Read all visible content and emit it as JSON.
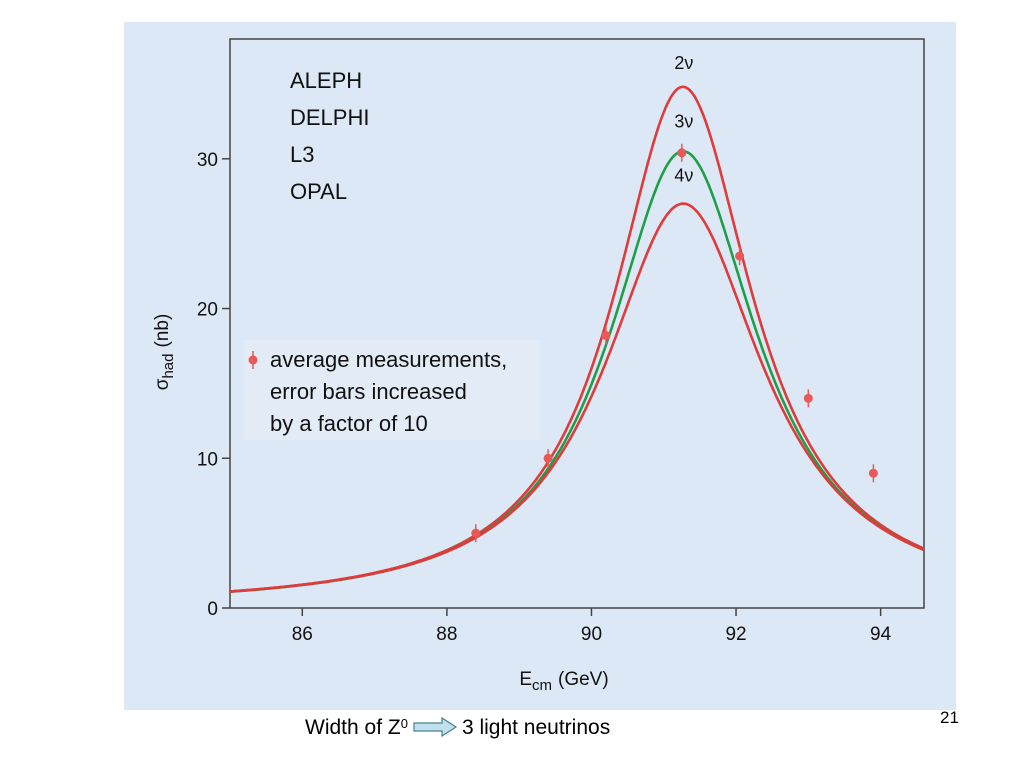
{
  "chart_data": {
    "type": "line",
    "xlabel_main": "E",
    "xlabel_sub": "cm",
    "xlabel_unit": "(GeV)",
    "ylabel_main": "σ",
    "ylabel_sub": "had",
    "ylabel_unit": "(nb)",
    "xlim": [
      85,
      94.6
    ],
    "ylim": [
      0,
      38
    ],
    "x_ticks": [
      86,
      88,
      90,
      92,
      94
    ],
    "y_ticks": [
      0,
      10,
      20,
      30
    ],
    "experiments": [
      "ALEPH",
      "DELPHI",
      "L3",
      "OPAL"
    ],
    "legend_lines": [
      "average measurements,",
      "error bars increased",
      "by a factor of 10"
    ],
    "series": [
      {
        "name": "2ν",
        "color": "#e03a3a",
        "peak": 34.8,
        "mz": 91.25,
        "width": 2.35
      },
      {
        "name": "3ν",
        "color": "#1f9e48",
        "peak": 30.5,
        "mz": 91.25,
        "width": 2.5
      },
      {
        "name": "4ν",
        "color": "#e03a3a",
        "peak": 27.0,
        "mz": 91.25,
        "width": 2.68
      }
    ],
    "measurements": [
      {
        "x": 88.4,
        "y": 5.0
      },
      {
        "x": 89.4,
        "y": 10.0
      },
      {
        "x": 90.2,
        "y": 18.2
      },
      {
        "x": 91.25,
        "y": 30.4
      },
      {
        "x": 92.05,
        "y": 23.5
      },
      {
        "x": 93.0,
        "y": 14.0
      },
      {
        "x": 93.9,
        "y": 9.0
      }
    ],
    "point_color": "#e85a5a"
  },
  "caption": {
    "prefix": "Width of Z",
    "superscript": "0",
    "suffix": "3 light neutrinos"
  },
  "page_number": "21"
}
